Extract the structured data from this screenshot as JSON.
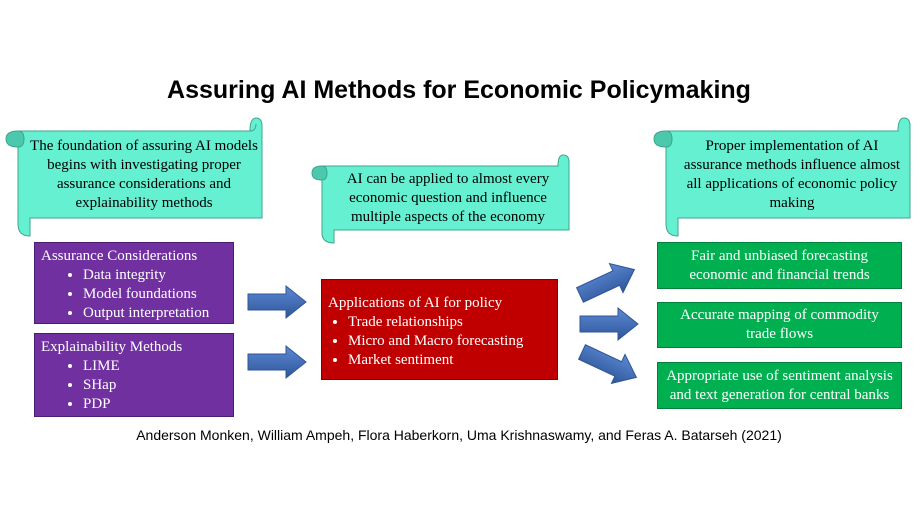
{
  "title": "Assuring AI Methods for Economic Policymaking",
  "scrolls": {
    "left": "The foundation of assuring AI models begins with investigating proper assurance considerations and explainability methods",
    "center": "AI can be applied to almost every economic question and influence multiple aspects of the economy",
    "right": "Proper implementation of AI assurance methods influence almost all applications of economic policy making"
  },
  "assurance": {
    "heading": "Assurance Considerations",
    "items": [
      "Data integrity",
      "Model foundations",
      "Output interpretation"
    ]
  },
  "explainability": {
    "heading": "Explainability Methods",
    "items": [
      "LIME",
      "SHap",
      "PDP"
    ]
  },
  "applications": {
    "heading": "Applications of AI for policy",
    "items": [
      "Trade relationships",
      "Micro and Macro forecasting",
      "Market sentiment"
    ]
  },
  "outcomes": [
    "Fair and unbiased forecasting economic and financial trends",
    "Accurate mapping of commodity trade flows",
    "Appropriate use of sentiment analysis and text generation for central banks"
  ],
  "citation": "Anderson Monken, William Ampeh, Flora Haberkorn, Uma Krishnaswamy, and Feras A. Batarseh (2021)",
  "colors": {
    "scroll": "#66f0d2",
    "purple": "#7030a0",
    "red": "#c00000",
    "green": "#00b050",
    "arrow": "#4472c4"
  }
}
